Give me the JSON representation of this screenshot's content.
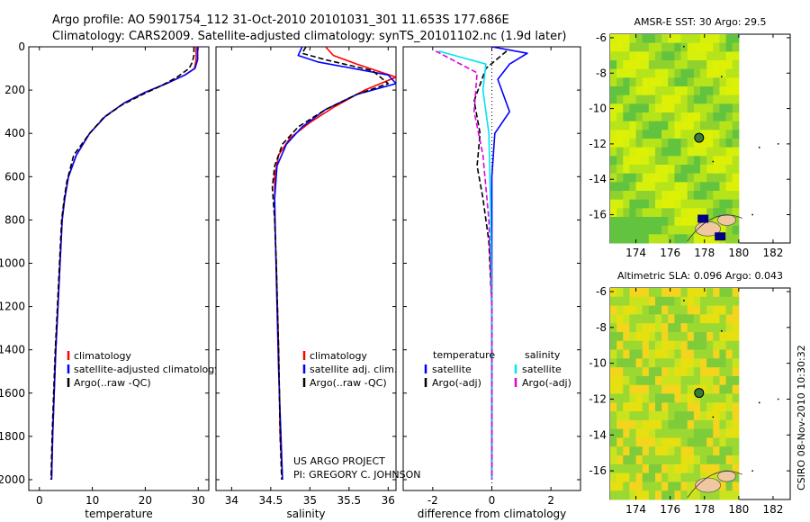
{
  "title": {
    "line1": "Argo profile: AO 5901754_112 31-Oct-2010 20101031_301 11.653S 177.686E",
    "line2": "Climatology: CARS2009. Satellite-adjusted climatology: synTS_20101102.nc (1.9d later)"
  },
  "side_stamp": "CSIRO 08-Nov-2010 10:30:32",
  "credit": {
    "line1": "US ARGO PROJECT",
    "line2": "PI: GREGORY C. JOHNSON"
  },
  "colors": {
    "climatology": "#ff0000",
    "satellite": "#0000ff",
    "argo": "#000000",
    "satellite_diff_salinity": "#00e5ee",
    "argo_diff_salinity": "#e000e0",
    "map_marker": "#3a7a3a",
    "map_land": "#f0c8a0",
    "map_patch": "#000080"
  },
  "chart_data": [
    {
      "id": "temperature",
      "type": "line",
      "xlabel": "temperature",
      "ylabel": "",
      "xlim": [
        -2,
        32
      ],
      "ylim": [
        2050,
        0
      ],
      "xticks": [
        0,
        10,
        20,
        30
      ],
      "yticks": [
        0,
        200,
        400,
        600,
        800,
        1000,
        1200,
        1400,
        1600,
        1800,
        2000
      ],
      "legend": [
        "climatology",
        "satellite-adjusted climatology",
        "Argo(..raw -QC)"
      ],
      "legend_position": "lower-left",
      "series": [
        {
          "name": "climatology",
          "style": "solid",
          "color": "#ff0000",
          "points": [
            [
              29.6,
              0
            ],
            [
              29.6,
              60
            ],
            [
              29.3,
              100
            ],
            [
              27.5,
              130
            ],
            [
              24,
              170
            ],
            [
              20,
              210
            ],
            [
              16,
              260
            ],
            [
              12.5,
              320
            ],
            [
              9.5,
              400
            ],
            [
              7,
              500
            ],
            [
              5.5,
              600
            ],
            [
              4.8,
              700
            ],
            [
              4.3,
              800
            ],
            [
              3.9,
              1000
            ],
            [
              3.5,
              1200
            ],
            [
              3.1,
              1400
            ],
            [
              2.8,
              1600
            ],
            [
              2.5,
              1800
            ],
            [
              2.3,
              2000
            ]
          ]
        },
        {
          "name": "satellite-adjusted climatology",
          "style": "solid",
          "color": "#0000ff",
          "points": [
            [
              29.9,
              0
            ],
            [
              29.9,
              60
            ],
            [
              29.4,
              100
            ],
            [
              27.5,
              130
            ],
            [
              24,
              170
            ],
            [
              20,
              210
            ],
            [
              16,
              260
            ],
            [
              12.5,
              320
            ],
            [
              9.5,
              400
            ],
            [
              7,
              500
            ],
            [
              5.5,
              600
            ],
            [
              4.8,
              700
            ],
            [
              4.3,
              800
            ],
            [
              3.9,
              1000
            ],
            [
              3.5,
              1200
            ],
            [
              3.1,
              1400
            ],
            [
              2.8,
              1600
            ],
            [
              2.5,
              1800
            ],
            [
              2.3,
              2000
            ]
          ]
        },
        {
          "name": "Argo(..raw -QC)",
          "style": "dashed",
          "color": "#000000",
          "points": [
            [
              29.2,
              0
            ],
            [
              29.2,
              40
            ],
            [
              28.9,
              70
            ],
            [
              28.3,
              100
            ],
            [
              26,
              140
            ],
            [
              23,
              180
            ],
            [
              19.5,
              220
            ],
            [
              15.5,
              270
            ],
            [
              12,
              330
            ],
            [
              9.5,
              400
            ],
            [
              6.5,
              500
            ],
            [
              5.2,
              620
            ],
            [
              4.7,
              700
            ],
            [
              4.2,
              800
            ],
            [
              3.8,
              1000
            ],
            [
              3.4,
              1200
            ],
            [
              3.0,
              1400
            ],
            [
              2.7,
              1600
            ],
            [
              2.4,
              1800
            ],
            [
              2.2,
              2000
            ]
          ]
        }
      ]
    },
    {
      "id": "salinity",
      "type": "line",
      "xlabel": "salinity",
      "ylabel": "",
      "xlim": [
        33.8,
        36.1
      ],
      "ylim": [
        2050,
        0
      ],
      "xticks": [
        34,
        34.5,
        35,
        35.5,
        36
      ],
      "yticks": [
        0,
        200,
        400,
        600,
        800,
        1000,
        1200,
        1400,
        1600,
        1800,
        2000
      ],
      "legend": [
        "climatology",
        "satellite adj. clim.",
        "Argo(..raw -QC)"
      ],
      "legend_position": "lower-right",
      "series": [
        {
          "name": "climatology",
          "style": "solid",
          "color": "#ff0000",
          "points": [
            [
              35.2,
              0
            ],
            [
              35.3,
              40
            ],
            [
              35.6,
              80
            ],
            [
              36.1,
              140
            ],
            [
              35.7,
              200
            ],
            [
              35.3,
              280
            ],
            [
              35.0,
              350
            ],
            [
              34.75,
              420
            ],
            [
              34.6,
              500
            ],
            [
              34.55,
              600
            ],
            [
              34.55,
              800
            ],
            [
              34.57,
              1000
            ],
            [
              34.6,
              1400
            ],
            [
              34.62,
              1800
            ],
            [
              34.65,
              2000
            ]
          ]
        },
        {
          "name": "satellite adj. clim.",
          "style": "solid",
          "color": "#0000ff",
          "points": [
            [
              34.9,
              0
            ],
            [
              34.85,
              40
            ],
            [
              35.1,
              70
            ],
            [
              36.0,
              130
            ],
            [
              36.1,
              170
            ],
            [
              35.6,
              220
            ],
            [
              35.2,
              290
            ],
            [
              34.9,
              370
            ],
            [
              34.7,
              450
            ],
            [
              34.58,
              550
            ],
            [
              34.55,
              700
            ],
            [
              34.56,
              900
            ],
            [
              34.58,
              1200
            ],
            [
              34.6,
              1500
            ],
            [
              34.63,
              1800
            ],
            [
              34.65,
              2000
            ]
          ]
        },
        {
          "name": "Argo(..raw -QC)",
          "style": "dashed",
          "color": "#000000",
          "points": [
            [
              34.95,
              0
            ],
            [
              34.9,
              30
            ],
            [
              35.2,
              60
            ],
            [
              35.8,
              110
            ],
            [
              36.0,
              170
            ],
            [
              35.6,
              220
            ],
            [
              35.2,
              290
            ],
            [
              34.85,
              370
            ],
            [
              34.65,
              450
            ],
            [
              34.55,
              550
            ],
            [
              34.52,
              650
            ],
            [
              34.55,
              800
            ],
            [
              34.57,
              1000
            ],
            [
              34.6,
              1400
            ],
            [
              34.62,
              1800
            ],
            [
              34.64,
              2000
            ]
          ]
        }
      ]
    },
    {
      "id": "difference",
      "type": "line",
      "xlabel": "difference from climatology",
      "ylabel": "",
      "xlim": [
        -3,
        3
      ],
      "ylim": [
        2050,
        0
      ],
      "xticks": [
        -2,
        0,
        2
      ],
      "yticks": [
        0,
        200,
        400,
        600,
        800,
        1000,
        1200,
        1400,
        1600,
        1800,
        2000
      ],
      "legend_groups": [
        {
          "title": "temperature",
          "entries": [
            "satellite",
            "Argo(-adj)"
          ]
        },
        {
          "title": "salinity",
          "entries": [
            "satellite",
            "Argo(-adj)"
          ]
        }
      ],
      "legend_position": "lower",
      "series": [
        {
          "name": "temperature satellite",
          "style": "solid",
          "color": "#0000ff",
          "points": [
            [
              0,
              0
            ],
            [
              1.2,
              30
            ],
            [
              0.6,
              80
            ],
            [
              0.2,
              150
            ],
            [
              0.6,
              300
            ],
            [
              0.1,
              400
            ],
            [
              0,
              600
            ],
            [
              0,
              800
            ],
            [
              0,
              1200
            ],
            [
              0,
              2000
            ]
          ]
        },
        {
          "name": "temperature Argo(-adj)",
          "style": "dashed",
          "color": "#000000",
          "points": [
            [
              0.5,
              20
            ],
            [
              -0.2,
              100
            ],
            [
              -0.6,
              250
            ],
            [
              -0.4,
              400
            ],
            [
              -0.5,
              550
            ],
            [
              -0.3,
              700
            ],
            [
              -0.1,
              900
            ],
            [
              0,
              1200
            ],
            [
              0,
              2000
            ]
          ]
        },
        {
          "name": "salinity satellite",
          "style": "solid",
          "color": "#00e5ee",
          "points": [
            [
              -1.8,
              20
            ],
            [
              -0.2,
              80
            ],
            [
              -0.3,
              200
            ],
            [
              -0.1,
              400
            ],
            [
              -0.05,
              700
            ],
            [
              0,
              1200
            ],
            [
              0,
              2000
            ]
          ]
        },
        {
          "name": "salinity Argo(-adj)",
          "style": "dashed",
          "color": "#e000e0",
          "points": [
            [
              -1.9,
              20
            ],
            [
              -0.5,
              120
            ],
            [
              -0.6,
              300
            ],
            [
              -0.3,
              500
            ],
            [
              -0.1,
              800
            ],
            [
              0,
              1200
            ],
            [
              0,
              2000
            ]
          ]
        }
      ]
    },
    {
      "id": "sst_map",
      "type": "heatmap",
      "title": "AMSR-E SST: 30 Argo: 29.5",
      "xlim": [
        172.5,
        183
      ],
      "ylim": [
        -17.6,
        -5.8
      ],
      "xticks": [
        174,
        176,
        178,
        180,
        182
      ],
      "yticks": [
        -6,
        -8,
        -10,
        -12,
        -14,
        -16
      ],
      "float_position": [
        177.686,
        -11.653
      ]
    },
    {
      "id": "sla_map",
      "type": "heatmap",
      "title": "Altimetric SLA: 0.096 Argo: 0.043",
      "xlim": [
        172.5,
        183
      ],
      "ylim": [
        -17.6,
        -5.8
      ],
      "xticks": [
        174,
        176,
        178,
        180,
        182
      ],
      "yticks": [
        -6,
        -8,
        -10,
        -12,
        -14,
        -16
      ],
      "float_position": [
        177.686,
        -11.653
      ]
    }
  ]
}
